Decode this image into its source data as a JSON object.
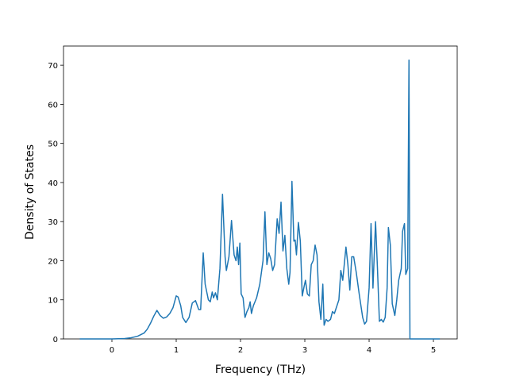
{
  "chart_data": {
    "type": "line",
    "x_label": "Frequency (THz)",
    "y_label": "Density of States",
    "xlim": [
      -0.753,
      5.37
    ],
    "ylim": [
      0,
      74.9
    ],
    "xticks": [
      0,
      1,
      2,
      3,
      4,
      5
    ],
    "yticks": [
      0,
      10,
      20,
      30,
      40,
      50,
      60,
      70
    ],
    "grid": false,
    "series": [
      {
        "color": "#1f77b4",
        "x": [
          -0.5,
          0,
          0.2,
          0.3,
          0.4,
          0.5,
          0.55,
          0.6,
          0.65,
          0.7,
          0.75,
          0.8,
          0.85,
          0.9,
          0.95,
          1.0,
          1.03,
          1.07,
          1.1,
          1.15,
          1.2,
          1.25,
          1.3,
          1.35,
          1.38,
          1.42,
          1.45,
          1.5,
          1.53,
          1.56,
          1.58,
          1.61,
          1.64,
          1.68,
          1.72,
          1.76,
          1.78,
          1.82,
          1.86,
          1.9,
          1.93,
          1.95,
          1.97,
          1.99,
          2.01,
          2.04,
          2.07,
          2.1,
          2.13,
          2.15,
          2.17,
          2.2,
          2.25,
          2.3,
          2.35,
          2.38,
          2.41,
          2.44,
          2.47,
          2.5,
          2.53,
          2.57,
          2.6,
          2.63,
          2.66,
          2.69,
          2.72,
          2.75,
          2.77,
          2.8,
          2.83,
          2.85,
          2.87,
          2.9,
          2.93,
          2.96,
          2.99,
          3.01,
          3.04,
          3.07,
          3.1,
          3.13,
          3.16,
          3.19,
          3.22,
          3.25,
          3.28,
          3.3,
          3.33,
          3.36,
          3.4,
          3.43,
          3.46,
          3.5,
          3.53,
          3.56,
          3.59,
          3.64,
          3.67,
          3.7,
          3.73,
          3.76,
          3.8,
          3.85,
          3.9,
          3.93,
          3.96,
          4.0,
          4.03,
          4.06,
          4.1,
          4.13,
          4.16,
          4.19,
          4.22,
          4.25,
          4.28,
          4.3,
          4.33,
          4.36,
          4.4,
          4.43,
          4.46,
          4.5,
          4.52,
          4.55,
          4.57,
          4.6,
          4.62,
          4.635,
          4.7,
          5.1
        ],
        "values": [
          0,
          0,
          0.1,
          0.3,
          0.7,
          1.5,
          2.5,
          4,
          5.8,
          7.3,
          6,
          5.3,
          5.6,
          6.5,
          8,
          11,
          10.7,
          8.5,
          5.5,
          4.2,
          5.5,
          9.2,
          9.8,
          7.5,
          7.5,
          22,
          14,
          10,
          9.5,
          12,
          10.5,
          11.8,
          10,
          18,
          37,
          21,
          17.5,
          21,
          30.3,
          21.5,
          20,
          23.5,
          19,
          24.5,
          11.5,
          10.5,
          5.5,
          7,
          8,
          9.5,
          6.5,
          8.5,
          10.5,
          14,
          20,
          32.5,
          19,
          22,
          20.5,
          17.5,
          19,
          30.7,
          27,
          35,
          22.5,
          26.5,
          18,
          14,
          17,
          40.3,
          25,
          25.3,
          21.5,
          29.8,
          25,
          11,
          13.5,
          15,
          11.5,
          11,
          19,
          20,
          24,
          21.5,
          9.5,
          5,
          14,
          3.5,
          5,
          4.5,
          5,
          7,
          6.5,
          8.5,
          10,
          17.5,
          15,
          23.5,
          19,
          12.5,
          21,
          21,
          17,
          11,
          5.5,
          3.8,
          4.5,
          13,
          29.5,
          13,
          30,
          18,
          4.5,
          5,
          4.3,
          5.5,
          13,
          28.5,
          24,
          9,
          6,
          10,
          15,
          18,
          27.5,
          29.5,
          16.5,
          18,
          71.3,
          0,
          0,
          0
        ]
      }
    ]
  }
}
